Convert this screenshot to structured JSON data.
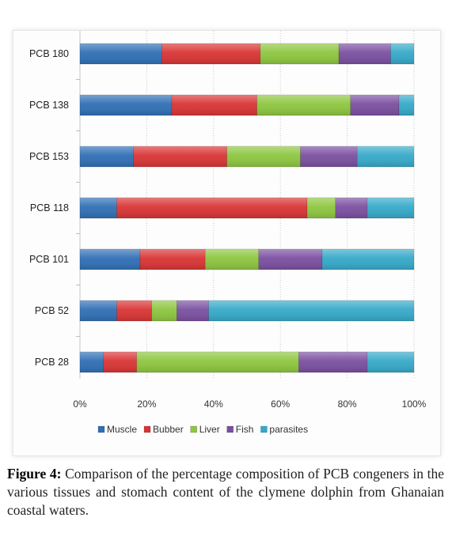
{
  "chart_data": {
    "type": "bar",
    "orientation": "horizontal",
    "stacked": "percent",
    "categories": [
      "PCB 180",
      "PCB 138",
      "PCB 153",
      "PCB 118",
      "PCB 101",
      "PCB 52",
      "PCB 28"
    ],
    "series": [
      {
        "name": "Muscle",
        "color": "#2f6fb5",
        "values": [
          24.5,
          27.5,
          16,
          11,
          18,
          11,
          7
        ]
      },
      {
        "name": "Bubber",
        "color": "#d93434",
        "values": [
          29.5,
          25.5,
          28,
          57,
          19.5,
          10.5,
          10
        ]
      },
      {
        "name": "Liver",
        "color": "#8dc63f",
        "values": [
          23.5,
          28,
          22,
          8.5,
          16,
          7.5,
          48.5
        ]
      },
      {
        "name": "Fish",
        "color": "#7a4fa0",
        "values": [
          15.5,
          14.5,
          17,
          9.5,
          19,
          9.5,
          20.5
        ]
      },
      {
        "name": "parasites",
        "color": "#35a9c9",
        "values": [
          7,
          4.5,
          17,
          14,
          27.5,
          61.5,
          14
        ]
      }
    ],
    "x_ticks": [
      "0%",
      "20%",
      "40%",
      "60%",
      "80%",
      "100%"
    ],
    "xlim": [
      0,
      100
    ],
    "grid": "vertical dotted",
    "legend_position": "bottom"
  },
  "caption": {
    "label": "Figure 4:",
    "text": " Comparison of the percentage composition of PCB congeners in the various tissues and stomach content of the clymene dolphin from Ghanaian coastal waters."
  }
}
